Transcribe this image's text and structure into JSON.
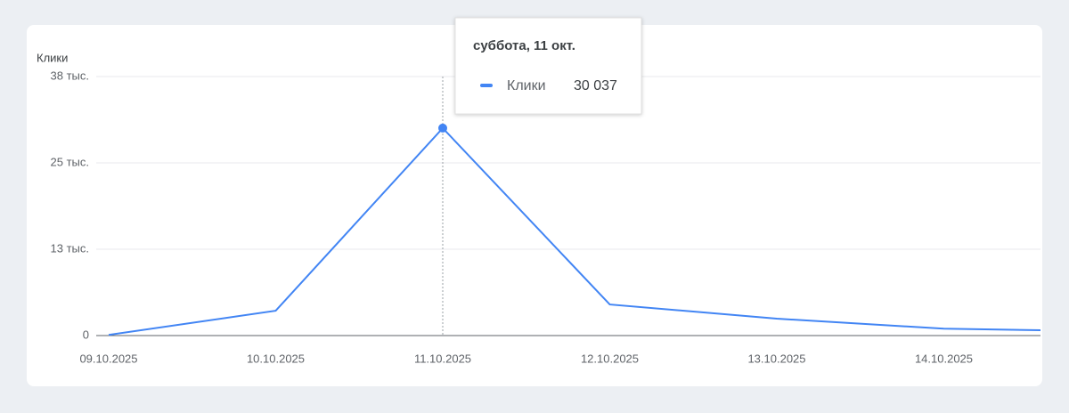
{
  "chart_data": {
    "type": "line",
    "y_label": "Клики",
    "categories": [
      "09.10.2025",
      "10.10.2025",
      "11.10.2025",
      "12.10.2025",
      "13.10.2025",
      "14.10.2025",
      null
    ],
    "series": [
      {
        "name": "Клики",
        "color": "#4285f4",
        "values": [
          100,
          3600,
          30037,
          4500,
          2450,
          1000,
          600
        ]
      }
    ],
    "ylim": [
      0,
      37500
    ],
    "yticks": [
      0,
      {
        "value": 12500,
        "label": "13 тыс."
      },
      {
        "value": 25000,
        "label": "25 тыс."
      },
      {
        "value": 37500,
        "label": "38 тыс."
      }
    ],
    "grid": true,
    "tooltip": {
      "title": "суббота, 11 окт.",
      "label": "30 037"
    }
  }
}
